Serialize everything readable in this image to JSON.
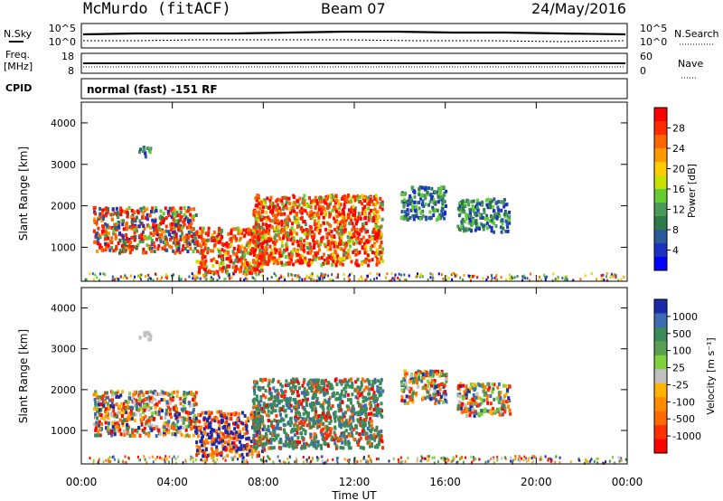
{
  "header": {
    "station": "McMurdo (fitACF)",
    "beam": "Beam 07",
    "date": "24/May/2016"
  },
  "noise_panel": {
    "left_label": "N.Sky",
    "right_label": "N.Search",
    "left_ticks": [
      "10^5",
      "10^0"
    ],
    "right_ticks": [
      "10^5",
      "10^0"
    ]
  },
  "freq_panel": {
    "left_label_line1": "Freq.",
    "left_label_line2": "[MHz]",
    "left_ticks": [
      18,
      8
    ],
    "right_label": "Nave",
    "right_ticks": [
      60,
      0
    ]
  },
  "cpid_panel": {
    "label": "CPID",
    "text": "normal (fast) -151 RF"
  },
  "power_panel": {
    "ylabel": "Slant Range [km]",
    "colorbar_label": "Power [dB]",
    "colorbar_ticks": [
      "28",
      "24",
      "20",
      "16",
      "12",
      "8",
      "4"
    ],
    "colorbar_colors": [
      "#ff0000",
      "#ff2a00",
      "#ff6600",
      "#ff9900",
      "#ffcc00",
      "#c8e000",
      "#66cc33",
      "#4a9a5a",
      "#2e7a4a",
      "#2a5a9a",
      "#1a30c0",
      "#0000ff"
    ]
  },
  "velocity_panel": {
    "ylabel": "Slant Range [km]",
    "colorbar_label": "Velocity [m s⁻¹]",
    "colorbar_ticks": [
      "1000",
      "500",
      "100",
      "25",
      "-25",
      "-100",
      "-500",
      "-1000"
    ],
    "colorbar_colors": [
      "#1a2aa8",
      "#3e6cb0",
      "#3a8a5a",
      "#5aa050",
      "#7fd23c",
      "#c0c0c0",
      "#ffb400",
      "#ff8c00",
      "#ff6a00",
      "#ff3000",
      "#ff0000"
    ]
  },
  "x_axis": {
    "label": "Time UT",
    "ticks": [
      "00:00",
      "04:00",
      "08:00",
      "12:00",
      "16:00",
      "20:00",
      "00:00"
    ]
  },
  "chart_data": {
    "type": "heatmap",
    "x_range_hours": [
      0,
      24
    ],
    "y_range_km": [
      180,
      4500
    ],
    "y_ticks_km": [
      1000,
      2000,
      3000,
      4000
    ],
    "scatter_regions": [
      {
        "t_start": 0.5,
        "t_end": 5.0,
        "r_min": 900,
        "r_max": 2000
      },
      {
        "t_start": 5.0,
        "t_end": 8.0,
        "r_min": 400,
        "r_max": 1500
      },
      {
        "t_start": 7.5,
        "t_end": 13.2,
        "r_min": 600,
        "r_max": 2300
      },
      {
        "t_start": 2.5,
        "t_end": 3.0,
        "r_min": 3200,
        "r_max": 3450
      },
      {
        "t_start": 14.0,
        "t_end": 16.0,
        "r_min": 1700,
        "r_max": 2500
      },
      {
        "t_start": 16.5,
        "t_end": 18.8,
        "r_min": 1400,
        "r_max": 2200
      }
    ]
  }
}
